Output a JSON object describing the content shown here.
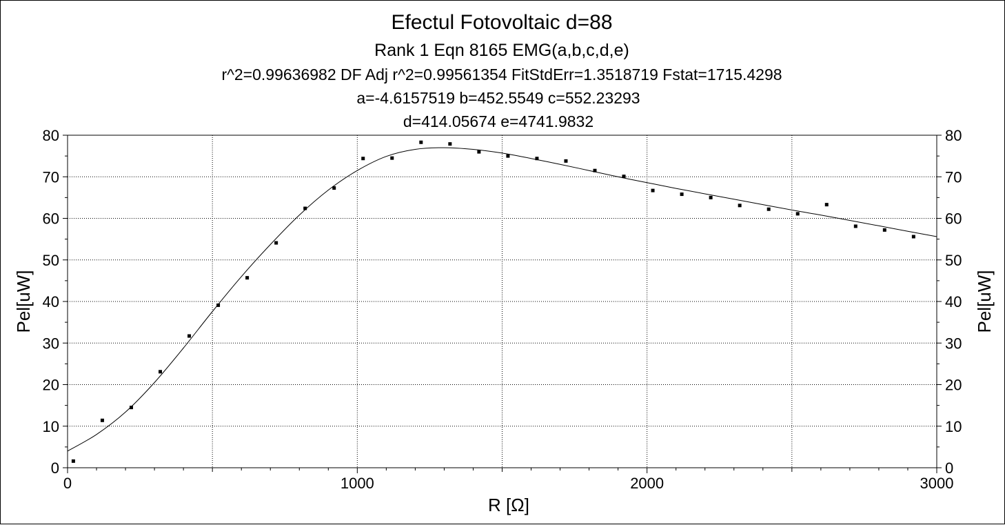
{
  "chart_data": {
    "type": "scatter",
    "title": "Efectul Fotovoltaic d=88",
    "subtitle": "Rank 1  Eqn 8165  EMG(a,b,c,d,e)",
    "stats_line": "r^2=0.99636982  DF Adj r^2=0.99561354  FitStdErr=1.3518719  Fstat=1715.4298",
    "params_line1": "a=-4.6157519 b=452.5549 c=552.23293",
    "params_line2": "d=414.05674 e=4741.9832",
    "xlabel": "R [Ω]",
    "ylabel_left": "Pel[uW]",
    "ylabel_right": "Pel[uW]",
    "xlim": [
      0,
      3000
    ],
    "ylim": [
      0,
      80
    ],
    "x_ticks": [
      0,
      1000,
      2000,
      3000
    ],
    "y_ticks": [
      0,
      10,
      20,
      30,
      40,
      50,
      60,
      70,
      80
    ],
    "grid": true,
    "fit_params": {
      "a": -4.6157519,
      "b": 452.5549,
      "c": 552.23293,
      "d": 414.05674,
      "e": 4741.9832
    },
    "points": {
      "x": [
        20,
        120,
        220,
        320,
        420,
        520,
        620,
        720,
        820,
        920,
        1020,
        1120,
        1220,
        1320,
        1420,
        1520,
        1620,
        1720,
        1820,
        1920,
        2020,
        2120,
        2220,
        2320,
        2420,
        2520,
        2620,
        2720,
        2820,
        2920
      ],
      "y": [
        1.6,
        11.4,
        14.5,
        23.1,
        31.7,
        39.1,
        45.7,
        54.1,
        62.4,
        67.3,
        74.4,
        74.5,
        78.3,
        77.9,
        76.0,
        75.0,
        74.4,
        73.8,
        71.5,
        70.1,
        66.7,
        65.8,
        65.0,
        63.1,
        62.2,
        61.1,
        63.3,
        58.1,
        57.2,
        55.6
      ]
    },
    "fit_curve": {
      "x": [
        0,
        100,
        200,
        300,
        400,
        500,
        600,
        700,
        800,
        900,
        1000,
        1100,
        1200,
        1300,
        1400,
        1500,
        1600,
        1700,
        1800,
        1900,
        2000,
        2100,
        2200,
        2300,
        2400,
        2500,
        2600,
        2700,
        2800,
        2900,
        3000
      ],
      "y": [
        4.0,
        8.0,
        13.4,
        20.5,
        28.8,
        37.6,
        46.0,
        53.7,
        60.8,
        66.8,
        71.5,
        74.9,
        76.6,
        77.0,
        76.6,
        75.7,
        74.4,
        73.0,
        71.5,
        70.0,
        68.6,
        67.2,
        65.9,
        64.6,
        63.3,
        62.0,
        60.8,
        59.5,
        58.2,
        56.9,
        55.6
      ]
    }
  }
}
